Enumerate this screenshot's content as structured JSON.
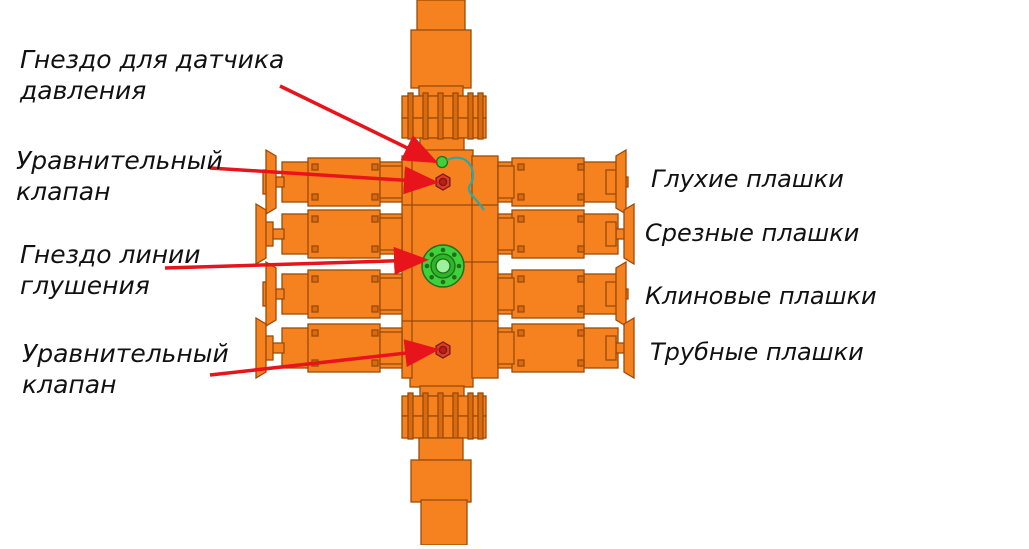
{
  "colors": {
    "body_fill": "#F5821F",
    "body_stroke": "#9A4A08",
    "shade": "#D86A10",
    "arrow": "#E8141B",
    "valve_fill": "#E23A2A",
    "kill_line_fill": "#3FD13A",
    "sensor_wire": "#2EA6A6",
    "label_text": "#111111"
  },
  "labels_left": [
    {
      "lines": [
        "Гнездо для датчика",
        "давления"
      ]
    },
    {
      "lines": [
        "Уравнительный",
        "клапан"
      ]
    },
    {
      "lines": [
        "Гнездо линии",
        "глушения"
      ]
    },
    {
      "lines": [
        "Уравнительный",
        "клапан"
      ]
    }
  ],
  "labels_right": [
    "Глухие плашки",
    "Срезные плашки",
    "Клиновые плашки",
    "Трубные плашки"
  ]
}
